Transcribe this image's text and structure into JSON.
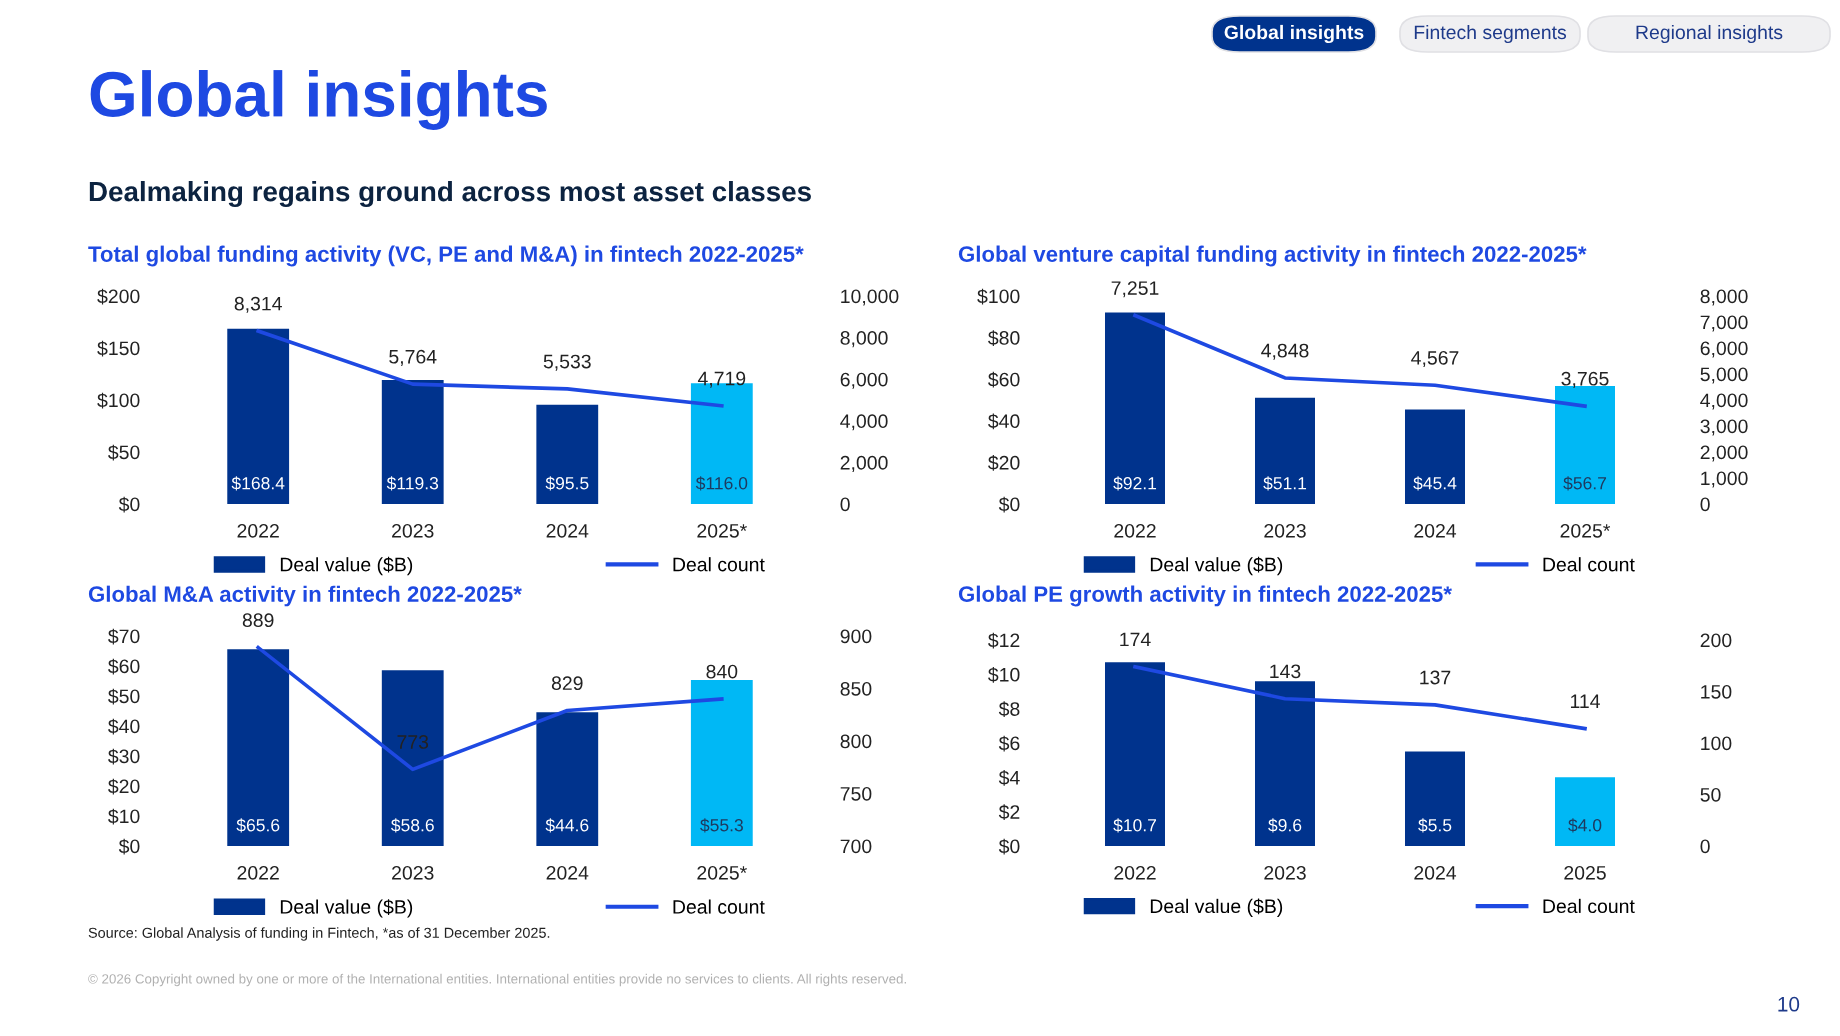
{
  "chart_data": [
    {
      "type": "other",
      "title": "Global insights",
      "subtitle": "Dealmaking regains ground across most asset classes",
      "annotations": [
        "Global insights",
        "Fintech segments",
        "Regional insights",
        "Source: Global Analysis of funding in Fintech, *as of 31 December 2025.",
        "© 2026 Copyright owned by one or more of the International entities. International entities provide no services to clients. All rights reserved.",
        "10"
      ]
    },
    {
      "type": "bar",
      "title": "Total global funding activity (VC, PE and M&A) in fintech 2022-2025*",
      "categories": [
        "2022",
        "2023",
        "2024",
        "2025*"
      ],
      "series": [
        {
          "name": "Deal value ($B)",
          "colors": [
            "#00338d",
            "#00338d",
            "#00338d",
            "#00b8f5"
          ],
          "values": [
            168.4,
            119.3,
            95.5,
            116.0
          ],
          "value_labels": [
            "$168.4",
            "$119.3",
            "$95.5",
            "$116.0"
          ]
        },
        {
          "name": "Deal count",
          "type": "line",
          "axis": "y2",
          "color": "#1e49e2",
          "values": [
            8314,
            5764,
            5533,
            4719
          ],
          "value_labels": [
            "8,314",
            "5,764",
            "5,533",
            "4,719"
          ]
        }
      ],
      "ylim": [
        0,
        200
      ],
      "yticks": [
        {
          "value": 0,
          "label": "$0"
        },
        {
          "value": 50,
          "label": "$50"
        },
        {
          "value": 100,
          "label": "$100"
        },
        {
          "value": 150,
          "label": "$150"
        },
        {
          "value": 200,
          "label": "$200"
        }
      ],
      "y2lim": [
        0,
        10000
      ],
      "y2ticks": [
        0,
        {
          "value": 2000,
          "label": "2,000"
        },
        {
          "value": 4000,
          "label": "4,000"
        },
        {
          "value": 6000,
          "label": "6,000"
        },
        {
          "value": 8000,
          "label": "8,000"
        },
        {
          "value": 10000,
          "label": "10,000"
        }
      ],
      "legend": "bottom",
      "grid": false
    },
    {
      "type": "bar",
      "title": "Global venture capital funding activity in fintech 2022-2025*",
      "categories": [
        "2022",
        "2023",
        "2024",
        "2025*"
      ],
      "series": [
        {
          "name": "Deal value ($B)",
          "colors": [
            "#00338d",
            "#00338d",
            "#00338d",
            "#00b8f5"
          ],
          "values": [
            92.1,
            51.1,
            45.4,
            56.7
          ],
          "value_labels": [
            "$92.1",
            "$51.1",
            "$45.4",
            "$56.7"
          ]
        },
        {
          "name": "Deal count",
          "type": "line",
          "axis": "y2",
          "color": "#1e49e2",
          "values": [
            7251,
            4848,
            4567,
            3765
          ],
          "value_labels": [
            "7,251",
            "4,848",
            "4,567",
            "3,765"
          ]
        }
      ],
      "ylim": [
        0,
        100
      ],
      "yticks": [
        {
          "value": 0,
          "label": "$0"
        },
        {
          "value": 20,
          "label": "$20"
        },
        {
          "value": 40,
          "label": "$40"
        },
        {
          "value": 60,
          "label": "$60"
        },
        {
          "value": 80,
          "label": "$80"
        },
        {
          "value": 100,
          "label": "$100"
        }
      ],
      "y2lim": [
        0,
        8000
      ],
      "y2ticks": [
        0,
        {
          "value": 1000,
          "label": "1,000"
        },
        {
          "value": 2000,
          "label": "2,000"
        },
        {
          "value": 3000,
          "label": "3,000"
        },
        {
          "value": 4000,
          "label": "4,000"
        },
        {
          "value": 5000,
          "label": "5,000"
        },
        {
          "value": 6000,
          "label": "6,000"
        },
        {
          "value": 7000,
          "label": "7,000"
        },
        {
          "value": 8000,
          "label": "8,000"
        }
      ],
      "legend": "bottom",
      "grid": false
    },
    {
      "type": "bar",
      "title": "Global M&A activity in fintech 2022-2025*",
      "categories": [
        "2022",
        "2023",
        "2024",
        "2025*"
      ],
      "series": [
        {
          "name": "Deal value ($B)",
          "colors": [
            "#00338d",
            "#00338d",
            "#00338d",
            "#00b8f5"
          ],
          "values": [
            65.6,
            58.6,
            44.6,
            55.3
          ],
          "value_labels": [
            "$65.6",
            "$58.6",
            "$44.6",
            "$55.3"
          ]
        },
        {
          "name": "Deal count",
          "type": "line",
          "axis": "y2",
          "color": "#1e49e2",
          "values": [
            889,
            773,
            829,
            840
          ],
          "value_labels": [
            "889",
            "773",
            "829",
            "840"
          ]
        }
      ],
      "ylim": [
        0,
        70
      ],
      "yticks": [
        {
          "value": 0,
          "label": "$0"
        },
        {
          "value": 10,
          "label": "$10"
        },
        {
          "value": 20,
          "label": "$20"
        },
        {
          "value": 30,
          "label": "$30"
        },
        {
          "value": 40,
          "label": "$40"
        },
        {
          "value": 50,
          "label": "$50"
        },
        {
          "value": 60,
          "label": "$60"
        },
        {
          "value": 70,
          "label": "$70"
        }
      ],
      "y2lim": [
        700,
        900
      ],
      "y2ticks": [
        700,
        750,
        800,
        850,
        900
      ],
      "legend": "bottom",
      "grid": false
    },
    {
      "type": "bar",
      "title": "Global PE growth activity in fintech 2022-2025*",
      "categories": [
        "2022",
        "2023",
        "2024",
        "2025"
      ],
      "series": [
        {
          "name": "Deal value ($B)",
          "colors": [
            "#00338d",
            "#00338d",
            "#00338d",
            "#00b8f5"
          ],
          "values": [
            10.7,
            9.6,
            5.5,
            4.0
          ],
          "value_labels": [
            "$10.7",
            "$9.6",
            "$5.5",
            "$4.0"
          ]
        },
        {
          "name": "Deal count",
          "type": "line",
          "axis": "y2",
          "color": "#1e49e2",
          "values": [
            174,
            143,
            137,
            114
          ],
          "value_labels": [
            "174",
            "143",
            "137",
            "114"
          ]
        }
      ],
      "ylim": [
        0,
        12
      ],
      "yticks": [
        {
          "value": 0,
          "label": "$0"
        },
        {
          "value": 2,
          "label": "$2"
        },
        {
          "value": 4,
          "label": "$4"
        },
        {
          "value": 6,
          "label": "$6"
        },
        {
          "value": 8,
          "label": "$8"
        },
        {
          "value": 10,
          "label": "$10"
        },
        {
          "value": 12,
          "label": "$12"
        }
      ],
      "y2lim": [
        0,
        200
      ],
      "y2ticks": [
        0,
        50,
        100,
        150,
        200
      ],
      "legend": "bottom",
      "grid": false
    }
  ]
}
